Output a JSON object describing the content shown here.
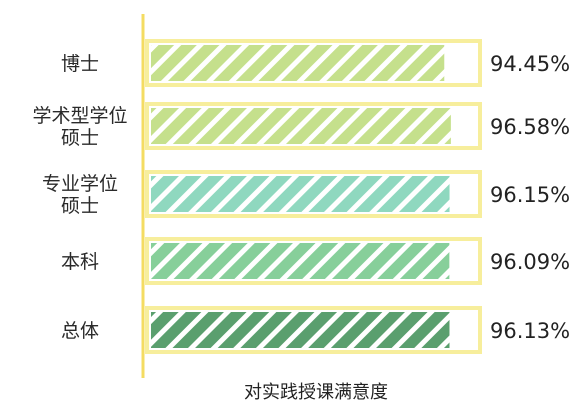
{
  "chart_data": {
    "type": "bar",
    "orientation": "horizontal",
    "categories": [
      [
        "博士"
      ],
      [
        "学术型学位",
        "硕士"
      ],
      [
        "专业学位",
        "硕士"
      ],
      [
        "本科"
      ],
      [
        "总体"
      ]
    ],
    "values": [
      94.45,
      96.58,
      96.15,
      96.09,
      96.13
    ],
    "value_labels": [
      "94.45%",
      "96.58%",
      "96.15%",
      "96.09%",
      "96.13%"
    ],
    "xlabel": "对实践授课满意度",
    "ylabel": "",
    "xlim": [
      0,
      100
    ],
    "grid": false,
    "legend": "none",
    "colors": {
      "bar_fills": [
        "#c5e08c",
        "#c5e08c",
        "#8fd8bf",
        "#87cf9a",
        "#5a9f6e"
      ],
      "frame": "#f7ee9c",
      "axis": "#f4dc62"
    }
  }
}
